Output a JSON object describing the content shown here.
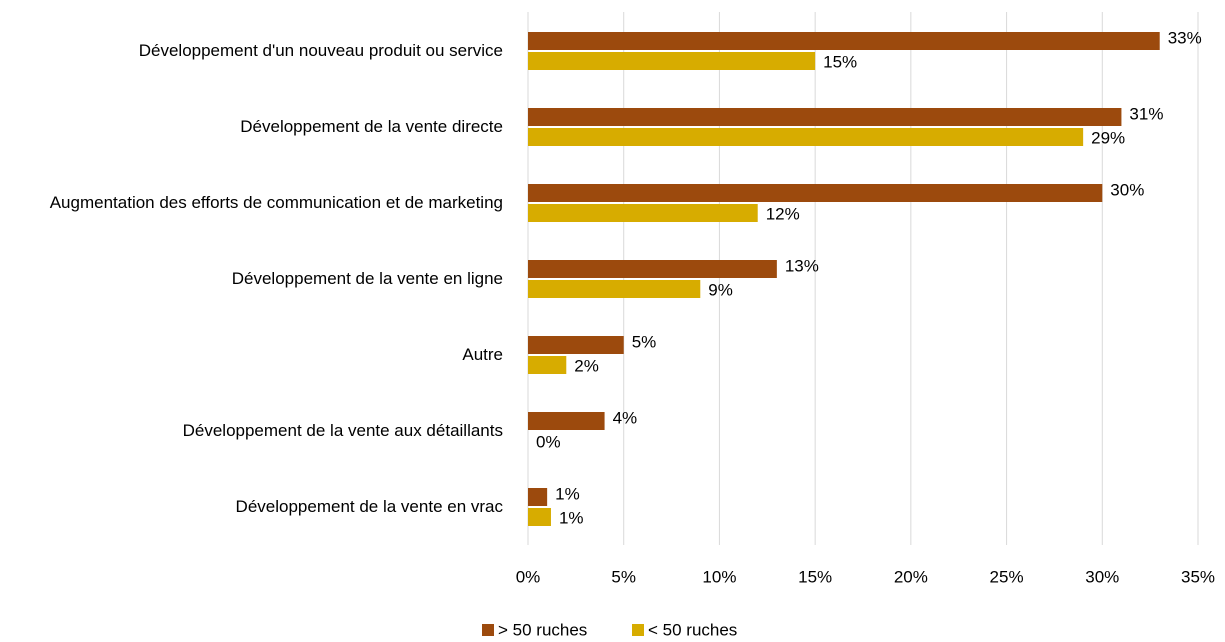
{
  "chart_data": {
    "type": "hbar",
    "categories": [
      "Développement d'un nouveau produit ou service",
      "Développement de la vente directe",
      "Augmentation des efforts de communication et de marketing",
      "Développement de la vente en ligne",
      "Autre",
      "Développement de la vente aux détaillants",
      "Développement de la vente en vrac"
    ],
    "series": [
      {
        "name": "> 50 ruches",
        "color": "#9c4a0d",
        "values": [
          33,
          31,
          30,
          13,
          5,
          4,
          1
        ],
        "value_labels": [
          "33%",
          "31%",
          "30%",
          "13%",
          "5%",
          "4%",
          "1%"
        ]
      },
      {
        "name": "< 50 ruches",
        "color": "#d7ac00",
        "values": [
          15,
          29,
          12,
          9,
          2,
          0,
          1.2
        ],
        "value_labels": [
          "15%",
          "29%",
          "12%",
          "9%",
          "2%",
          "0%",
          "1%"
        ]
      }
    ],
    "xlim": [
      0,
      35
    ],
    "xticks": [
      {
        "value": 0,
        "label": "0%"
      },
      {
        "value": 5,
        "label": "5%"
      },
      {
        "value": 10,
        "label": "10%"
      },
      {
        "value": 15,
        "label": "15%"
      },
      {
        "value": 20,
        "label": "20%"
      },
      {
        "value": 25,
        "label": "25%"
      },
      {
        "value": 30,
        "label": "30%"
      },
      {
        "value": 35,
        "label": "35%"
      }
    ],
    "grid": true,
    "legend": "bottom"
  }
}
